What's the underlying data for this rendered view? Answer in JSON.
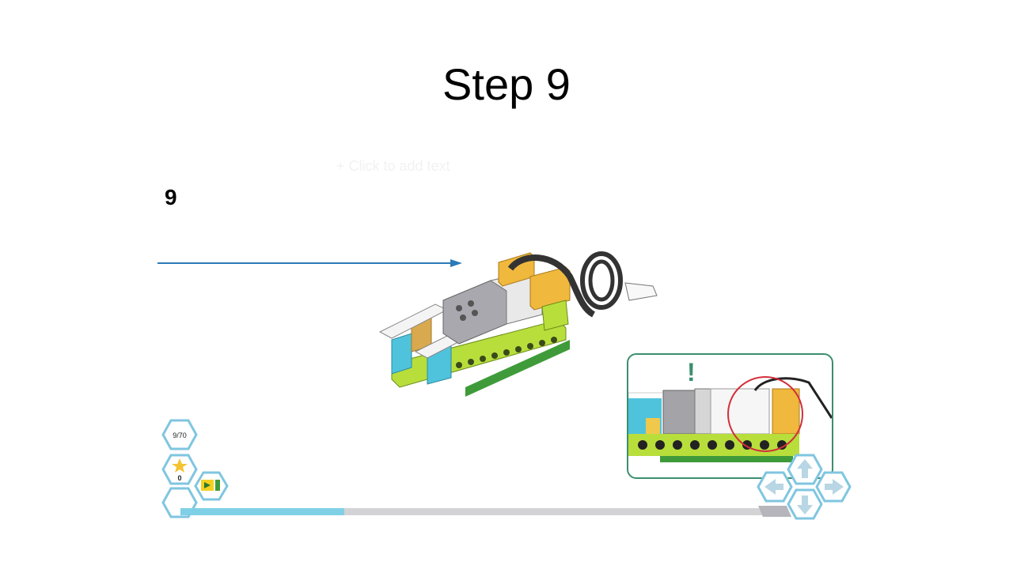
{
  "slide": {
    "title": "Step 9",
    "ghost_text": "+ Click to add text",
    "step_number": "9"
  },
  "hud": {
    "page_counter": "9/70",
    "star_count": "0",
    "progress_fraction": 0.28
  },
  "callout": {
    "alert_mark": "!"
  },
  "colors": {
    "accent": "#2a7ab8",
    "progress": "#7fd0e6",
    "callout_border": "#3b8f6e",
    "highlight_circle": "#d32f3a",
    "lime": "#b8de3c",
    "cyan": "#4fc3dc",
    "orange": "#f0b83c"
  }
}
